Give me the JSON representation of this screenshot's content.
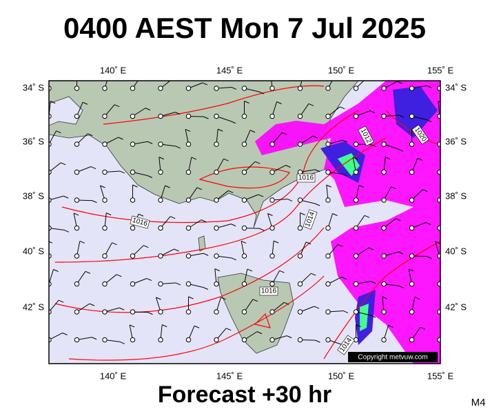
{
  "title": "0400 AEST Mon 7 Jul 2025",
  "footer": "Forecast +30 hr",
  "model": "M4",
  "copyright": "Copyright metvuw.com",
  "longitude_labels": [
    "140˚ E",
    "145˚ E",
    "150˚ E",
    "155˚ E"
  ],
  "latitude_labels": [
    "34˚ S",
    "36˚ S",
    "38˚ S",
    "40˚ S",
    "42˚ S"
  ],
  "isobar_labels": [
    "1012",
    "1020",
    "1016",
    "1014",
    "1016",
    "1016",
    "1014"
  ]
}
